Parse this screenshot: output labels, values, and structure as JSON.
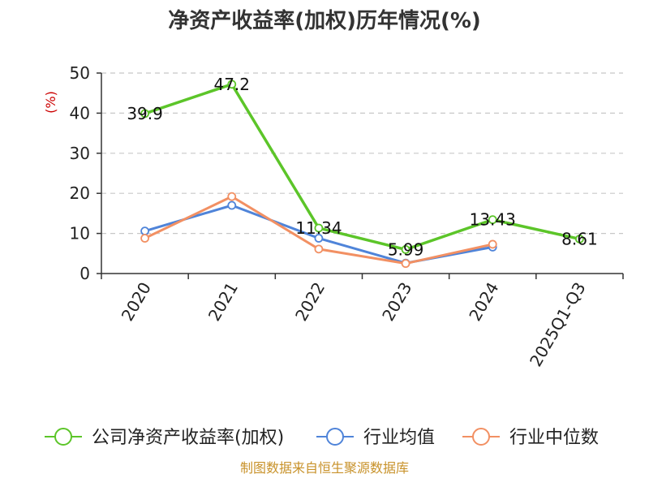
{
  "chart_data": {
    "type": "line",
    "title": "净资产收益率(加权)历年情况(%)",
    "ylabel": "(%)",
    "categories": [
      "2020",
      "2021",
      "2022",
      "2023",
      "2024",
      "2025Q1-Q3"
    ],
    "ylim": [
      0,
      50
    ],
    "yticks": [
      0,
      10,
      20,
      30,
      40,
      50
    ],
    "grid": true,
    "legend_position": "bottom",
    "series": [
      {
        "name": "公司净资产收益率(加权)",
        "color": "#5cc529",
        "values": [
          39.9,
          47.2,
          11.34,
          5.99,
          13.43,
          8.61
        ],
        "labels": [
          "39.9",
          "47.2",
          "11.34",
          "5.99",
          "13.43",
          "8.61"
        ]
      },
      {
        "name": "行业均值",
        "color": "#4f84d9",
        "values": [
          10.6,
          17.0,
          8.8,
          2.6,
          6.6,
          null
        ]
      },
      {
        "name": "行业中位数",
        "color": "#f29063",
        "values": [
          8.8,
          19.2,
          6.1,
          2.5,
          7.3,
          null
        ]
      }
    ]
  },
  "source": "制图数据来自恒生聚源数据库"
}
